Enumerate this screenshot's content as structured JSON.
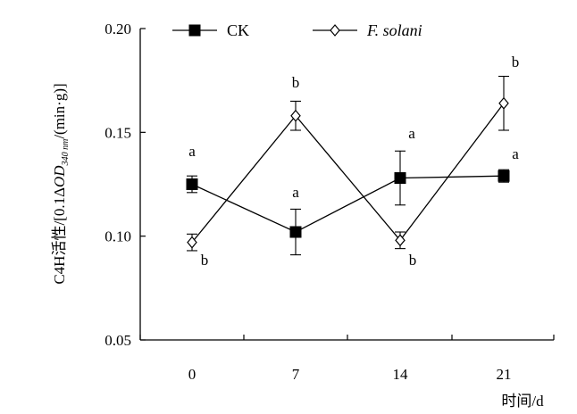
{
  "chart_data": {
    "type": "line",
    "x": [
      0,
      7,
      14,
      21
    ],
    "x_tick_labels": [
      "0",
      "7",
      "14",
      "21"
    ],
    "y_tick_labels": [
      "0.05",
      "0.10",
      "0.15",
      "0.20"
    ],
    "ylim": [
      0.05,
      0.2
    ],
    "xlabel": "时间/d",
    "ylabel": {
      "prefix": "C4H活性/[0.1Δ",
      "od": "OD",
      "sub": "340 nm",
      "suffix": "/(min·g)]"
    },
    "grid": false,
    "legend_position": "top",
    "series": [
      {
        "name": "CK",
        "marker": "filled-square",
        "color": "#000000",
        "values": [
          0.125,
          0.102,
          0.128,
          0.129
        ],
        "errors": [
          0.004,
          0.011,
          0.013,
          0.003
        ],
        "letters": [
          "a",
          "a",
          "a",
          "a"
        ]
      },
      {
        "name": "F. solani",
        "marker": "open-diamond",
        "color": "#000000",
        "values": [
          0.097,
          0.158,
          0.098,
          0.164
        ],
        "errors": [
          0.004,
          0.007,
          0.004,
          0.013
        ],
        "letters": [
          "b",
          "b",
          "b",
          "b"
        ]
      }
    ]
  }
}
